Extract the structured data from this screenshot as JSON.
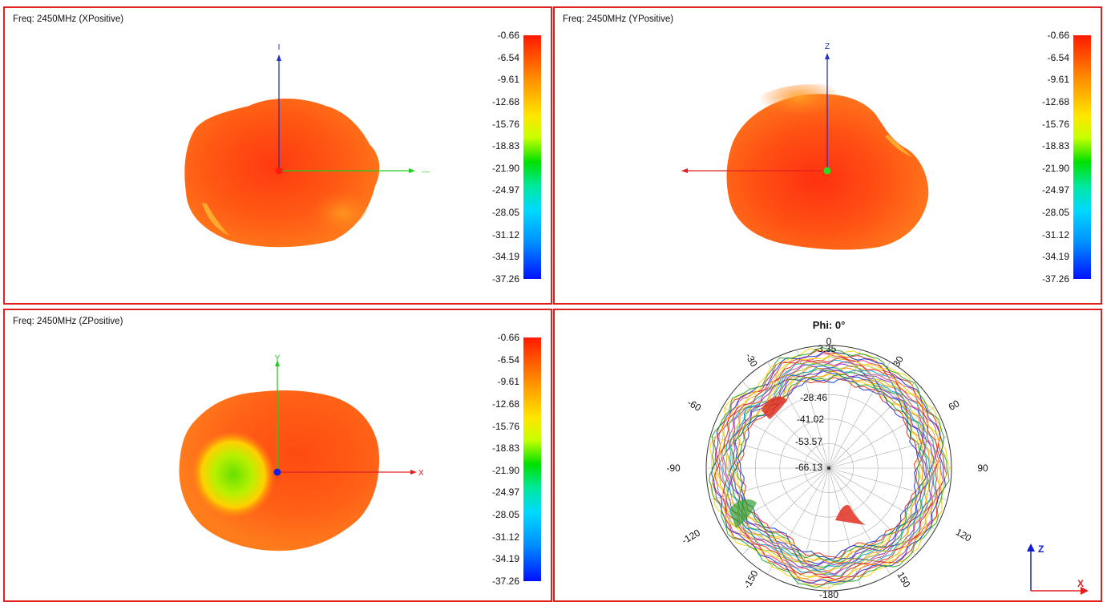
{
  "panels": {
    "x": {
      "title": "Freq: 2450MHz (XPositive)",
      "axis_v": "I",
      "axis_h": "—"
    },
    "y": {
      "title": "Freq: 2450MHz (YPositive)",
      "axis_v": "Z"
    },
    "z": {
      "title": "Freq: 2450MHz (ZPositive)",
      "axis_v": "Y",
      "axis_h": "X"
    },
    "polar": {
      "title": "Phi: 0°",
      "radial_labels": [
        "-3.35",
        "-28.46",
        "-41.02",
        "-53.57",
        "-66.13"
      ],
      "angle_labels": {
        "a0": "0",
        "a30": "30",
        "a60": "60",
        "a90": "90",
        "a120": "120",
        "a150": "150",
        "a180": "-180",
        "am150": "-150",
        "am120": "-120",
        "am90": "-90",
        "am60": "-60",
        "am30": "-30"
      },
      "axis_v": "Z",
      "axis_h": "X"
    }
  },
  "colorbar": {
    "labels": [
      "-0.66",
      "-6.54",
      "-9.61",
      "-12.68",
      "-15.76",
      "-18.83",
      "-21.90",
      "-24.97",
      "-28.05",
      "-31.12",
      "-34.19",
      "-37.26"
    ]
  },
  "colors": {
    "frame": "#e0201c",
    "pattern_main": "#ff6a10",
    "axis_x": "#e02020",
    "axis_y": "#22cc22",
    "axis_z": "#2030d0"
  }
}
